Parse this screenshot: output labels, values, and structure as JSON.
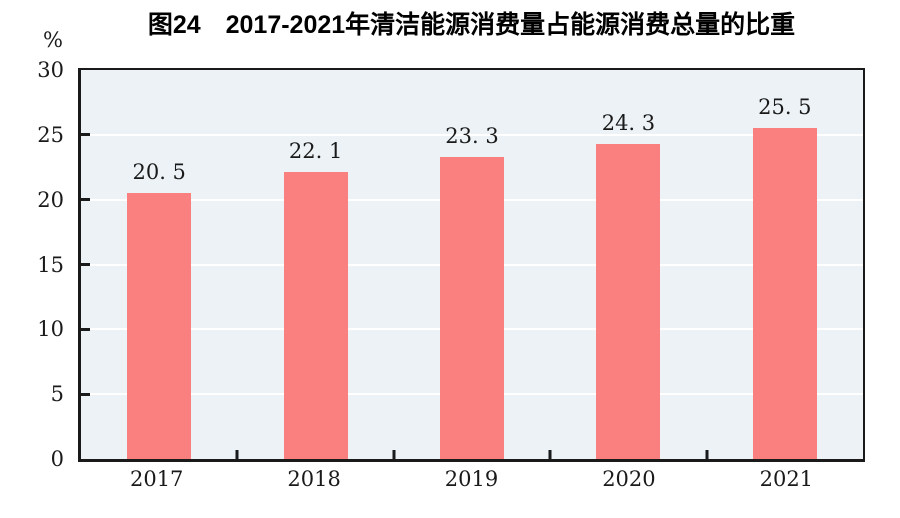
{
  "title": "图24　2017-2021年清洁能源消费量占能源消费总量的比重",
  "y_axis_unit": "%",
  "chart_data": {
    "type": "bar",
    "title": "图24　2017-2021年清洁能源消费量占能源消费总量的比重",
    "categories": [
      "2017",
      "2018",
      "2019",
      "2020",
      "2021"
    ],
    "values": [
      20.5,
      22.1,
      23.3,
      24.3,
      25.5
    ],
    "value_labels": [
      "20. 5",
      "22. 1",
      "23. 3",
      "24. 3",
      "25. 5"
    ],
    "xlabel": "",
    "ylabel": "%",
    "ylim": [
      0,
      30
    ],
    "yticks": [
      0,
      5,
      10,
      15,
      20,
      25,
      30
    ],
    "grid": "horizontal",
    "legend": "none",
    "colors": {
      "bar": "#FA7F7F",
      "plot_background": "#ECF2F6",
      "gridline": "#FFFFFF",
      "axis": "#1A1A1A",
      "text": "#1A1A1A"
    }
  }
}
